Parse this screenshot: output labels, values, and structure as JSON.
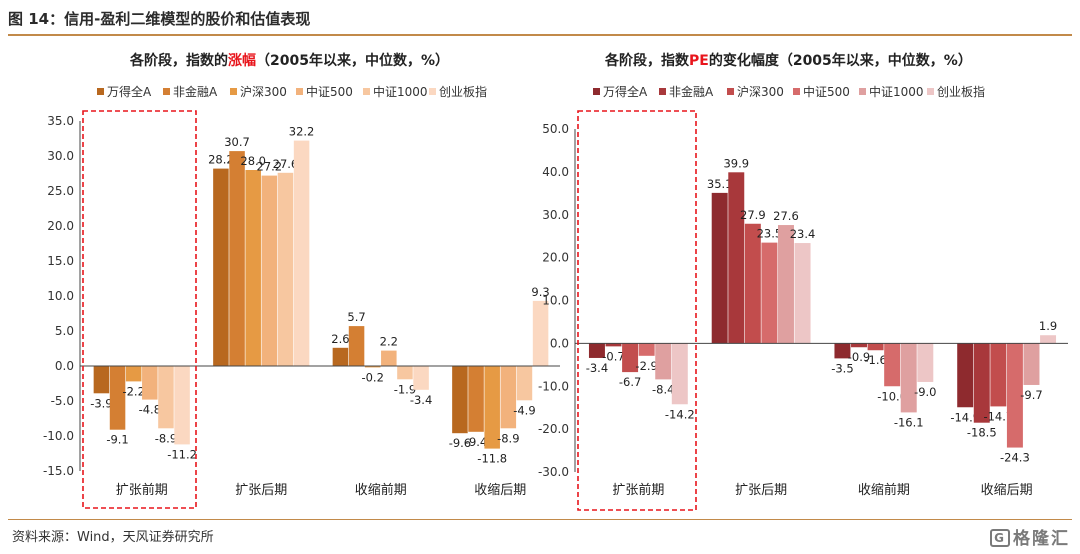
{
  "figure": {
    "title": "图 14：信用-盈利二维模型的股价和估值表现",
    "source": "资料来源：Wind，天风证券研究所",
    "logo": "格隆汇",
    "logo_mark": "G"
  },
  "chart_data": [
    {
      "type": "bar",
      "title_prefix": "各阶段，指数的",
      "title_highlight": "涨幅",
      "title_suffix": "（2005年以来，中位数，%）",
      "highlight_color": "#e8151c",
      "categories": [
        "扩张前期",
        "扩张后期",
        "收缩前期",
        "收缩后期"
      ],
      "highlighted_category": "扩张前期",
      "ylim": [
        -15,
        35
      ],
      "yticks": [
        "-15.0",
        "-10.0",
        "-5.0",
        "0.0",
        "5.0",
        "10.0",
        "15.0",
        "20.0",
        "25.0",
        "30.0",
        "35.0"
      ],
      "series": [
        {
          "name": "万得全A",
          "color": "#b8681f",
          "values": [
            -3.9,
            28.2,
            2.6,
            -9.6
          ]
        },
        {
          "name": "非金融A",
          "color": "#d47f33",
          "values": [
            -9.1,
            30.7,
            5.7,
            -9.4
          ]
        },
        {
          "name": "沪深300",
          "color": "#e69a44",
          "values": [
            -2.2,
            28.0,
            -0.2,
            -11.8
          ]
        },
        {
          "name": "中证500",
          "color": "#f2b27c",
          "values": [
            -4.8,
            27.2,
            2.2,
            -8.9
          ]
        },
        {
          "name": "中证1000",
          "color": "#f7c7a0",
          "values": [
            -8.9,
            27.6,
            -1.9,
            -4.9
          ]
        },
        {
          "name": "创业板指",
          "color": "#fbd8c1",
          "values": [
            -11.2,
            32.2,
            -3.4,
            9.3
          ]
        }
      ],
      "grid": false,
      "legend": "top"
    },
    {
      "type": "bar",
      "title_prefix": "各阶段，指数",
      "title_highlight": "PE",
      "title_suffix": "的变化幅度（2005年以来，中位数，%）",
      "highlight_color": "#e8151c",
      "categories": [
        "扩张前期",
        "扩张后期",
        "收缩前期",
        "收缩后期"
      ],
      "highlighted_category": "扩张前期",
      "ylim": [
        -30,
        50
      ],
      "yticks": [
        "-30.0",
        "-20.0",
        "-10.0",
        "0.0",
        "10.0",
        "20.0",
        "30.0",
        "40.0",
        "50.0"
      ],
      "series": [
        {
          "name": "万得全A",
          "color": "#8e2a2e",
          "values": [
            -3.4,
            35.1,
            -3.5,
            -14.9
          ]
        },
        {
          "name": "非金融A",
          "color": "#a8383b",
          "values": [
            -0.7,
            39.9,
            -0.9,
            -18.5
          ]
        },
        {
          "name": "沪深300",
          "color": "#c24d4d",
          "values": [
            -6.7,
            27.9,
            -1.6,
            -14.7
          ]
        },
        {
          "name": "中证500",
          "color": "#d66b6b",
          "values": [
            -2.9,
            23.5,
            -10.0,
            -24.3
          ]
        },
        {
          "name": "中证1000",
          "color": "#dfa0a0",
          "values": [
            -8.4,
            27.6,
            -16.1,
            -9.7
          ]
        },
        {
          "name": "创业板指",
          "color": "#edc6c6",
          "values": [
            -14.2,
            23.4,
            -9.0,
            1.9
          ]
        }
      ],
      "grid": false,
      "legend": "top"
    }
  ]
}
